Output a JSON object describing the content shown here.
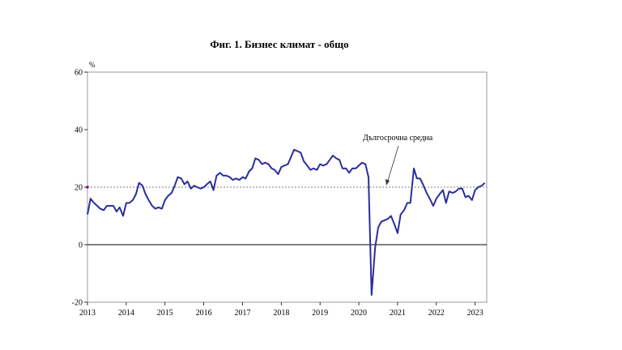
{
  "chart_data": {
    "type": "line",
    "title": "Фиг. 1. Бизнес климат - общо",
    "xlabel": "",
    "ylabel": "%",
    "xlim": [
      2013,
      2023.3
    ],
    "ylim": [
      -20,
      60
    ],
    "y_ticks": [
      -20,
      0,
      20,
      40,
      60
    ],
    "x_ticks": [
      2013,
      2014,
      2015,
      2016,
      2017,
      2018,
      2019,
      2020,
      2021,
      2022,
      2023
    ],
    "grid": false,
    "colors": {
      "series": "#2b2e9c",
      "reference": "#555555",
      "marker": "#c0008c"
    },
    "reference_line": {
      "value": 20,
      "label": "Дългосрочна средна"
    },
    "series": [
      {
        "x": [
          2013.0,
          2013.08,
          2013.17,
          2013.25,
          2013.33,
          2013.42,
          2013.5,
          2013.58,
          2013.67,
          2013.75,
          2013.83,
          2013.92,
          2014.0,
          2014.08,
          2014.17,
          2014.25,
          2014.33,
          2014.42,
          2014.5,
          2014.58,
          2014.67,
          2014.75,
          2014.83,
          2014.92,
          2015.0,
          2015.08,
          2015.17,
          2015.25,
          2015.33,
          2015.42,
          2015.5,
          2015.58,
          2015.67,
          2015.75,
          2015.83,
          2015.92,
          2016.0,
          2016.08,
          2016.17,
          2016.25,
          2016.33,
          2016.42,
          2016.5,
          2016.58,
          2016.67,
          2016.75,
          2016.83,
          2016.92,
          2017.0,
          2017.08,
          2017.17,
          2017.25,
          2017.33,
          2017.42,
          2017.5,
          2017.58,
          2017.67,
          2017.75,
          2017.83,
          2017.92,
          2018.0,
          2018.08,
          2018.17,
          2018.25,
          2018.33,
          2018.42,
          2018.5,
          2018.58,
          2018.67,
          2018.75,
          2018.83,
          2018.92,
          2019.0,
          2019.08,
          2019.17,
          2019.25,
          2019.33,
          2019.42,
          2019.5,
          2019.58,
          2019.67,
          2019.75,
          2019.83,
          2019.92,
          2020.0,
          2020.08,
          2020.17,
          2020.25,
          2020.33,
          2020.42,
          2020.5,
          2020.58,
          2020.67,
          2020.75,
          2020.83,
          2020.92,
          2021.0,
          2021.08,
          2021.17,
          2021.25,
          2021.33,
          2021.42,
          2021.5,
          2021.58,
          2021.67,
          2021.75,
          2021.83,
          2021.92,
          2022.0,
          2022.08,
          2022.17,
          2022.25,
          2022.33,
          2022.42,
          2022.5,
          2022.58,
          2022.67,
          2022.75,
          2022.83,
          2022.92,
          2023.0,
          2023.08,
          2023.17,
          2023.25
        ],
        "y": [
          10.5,
          16.0,
          14.5,
          13.5,
          12.5,
          12.0,
          13.5,
          13.5,
          13.5,
          11.5,
          13.0,
          10.0,
          14.5,
          14.5,
          15.5,
          17.5,
          21.5,
          20.5,
          17.5,
          15.5,
          13.5,
          12.5,
          13.0,
          12.5,
          15.5,
          17.0,
          18.0,
          20.5,
          23.5,
          23.0,
          21.0,
          22.0,
          19.5,
          20.5,
          20.0,
          19.5,
          20.0,
          21.0,
          22.0,
          19.0,
          24.0,
          25.0,
          24.0,
          24.0,
          23.5,
          22.5,
          23.0,
          22.5,
          23.5,
          23.0,
          25.5,
          26.5,
          30.0,
          29.5,
          28.0,
          28.5,
          28.0,
          26.5,
          26.0,
          24.5,
          27.0,
          27.5,
          28.0,
          30.5,
          33.0,
          32.5,
          32.0,
          29.0,
          27.5,
          26.0,
          26.5,
          26.0,
          28.0,
          27.5,
          28.0,
          29.5,
          31.0,
          30.0,
          29.5,
          26.5,
          26.5,
          25.0,
          26.5,
          26.5,
          27.5,
          28.5,
          28.0,
          23.5,
          -17.5,
          -1.0,
          6.0,
          8.0,
          8.5,
          9.0,
          10.0,
          7.0,
          4.0,
          10.5,
          12.0,
          14.5,
          14.5,
          26.5,
          23.0,
          23.0,
          20.5,
          18.0,
          16.0,
          13.5,
          16.0,
          17.5,
          19.0,
          14.5,
          18.5,
          18.0,
          18.5,
          19.5,
          19.5,
          16.5,
          17.0,
          15.5,
          19.0,
          20.0,
          20.5,
          21.5
        ]
      }
    ]
  }
}
